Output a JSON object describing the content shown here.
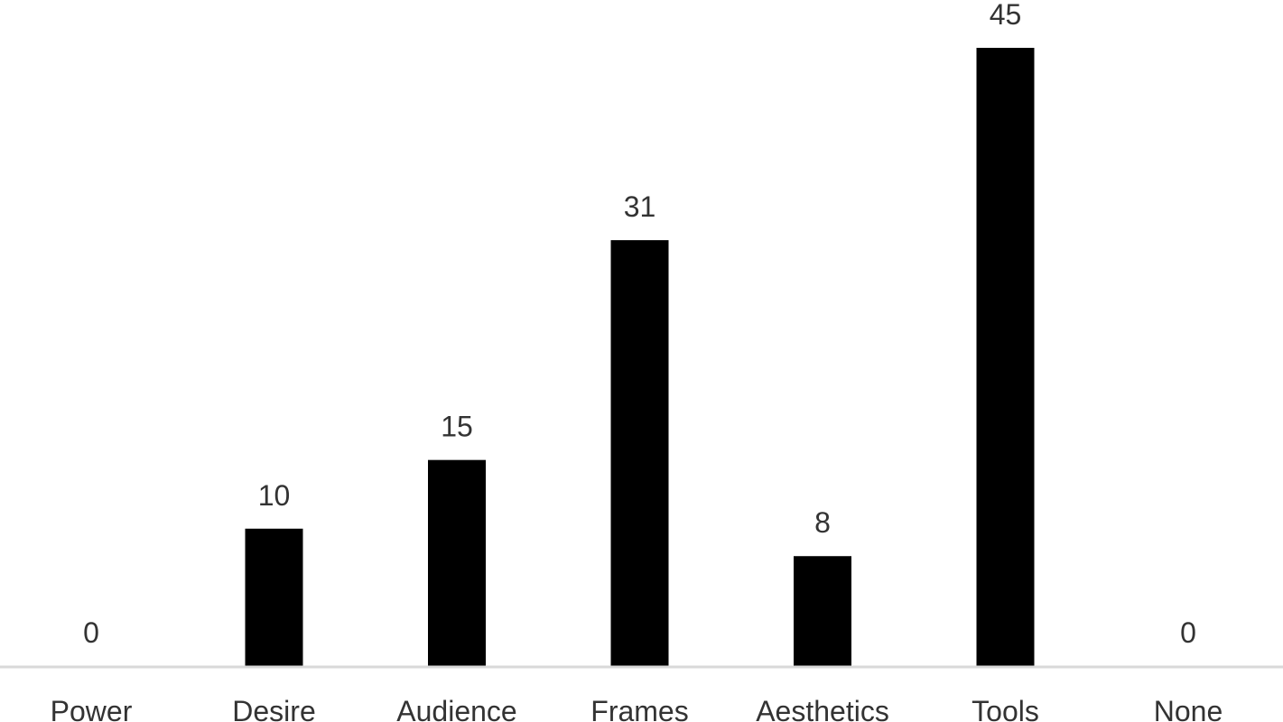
{
  "chart_data": {
    "type": "bar",
    "categories": [
      "Power",
      "Desire",
      "Audience",
      "Frames",
      "Aesthetics",
      "Tools",
      "None"
    ],
    "values": [
      0,
      10,
      15,
      31,
      8,
      45,
      0
    ],
    "data_labels": [
      "0",
      "10",
      "15",
      "31",
      "8",
      "45",
      "0"
    ],
    "title": "",
    "xlabel": "",
    "ylabel": "",
    "ylim": [
      0,
      45
    ],
    "grid": false,
    "legend": "none",
    "bar_color": "#000000",
    "axis_color": "#d9d9d9",
    "text_color": "#333333"
  }
}
